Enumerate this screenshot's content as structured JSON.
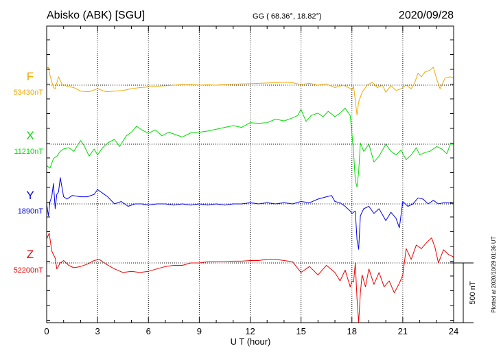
{
  "header": {
    "station": "Abisko (ABK)  [SGU]",
    "coords": "GG ( 68.36°,  18.82°)",
    "date": "2020/09/28"
  },
  "footer": {
    "plotted": "Plotted at 2020/10/29 01:36 UT"
  },
  "colors": {
    "F": "#f2a900",
    "X": "#00dd00",
    "Y": "#0000ee",
    "Z": "#ee0000"
  },
  "chart_data": {
    "type": "line",
    "xlabel": "U T (hour)",
    "xlim": [
      0,
      24
    ],
    "xticks": [
      "0",
      "3",
      "6",
      "9",
      "12",
      "15",
      "18",
      "21",
      "24"
    ],
    "grid": true,
    "scale_bar_label": "500 nT",
    "scale_bar_nT": 500,
    "series": [
      {
        "name": "F",
        "baseline_label": "53430nT",
        "baseline_nT": 53430,
        "x": [
          0,
          0.1,
          0.2,
          0.3,
          0.4,
          0.5,
          0.7,
          0.9,
          1.2,
          1.6,
          2.0,
          2.5,
          3.0,
          3.5,
          4.0,
          4.5,
          5.0,
          5.5,
          6.0,
          6.5,
          7.0,
          7.5,
          8.0,
          8.5,
          9.0,
          9.5,
          10.0,
          10.5,
          11.0,
          11.5,
          12.0,
          12.5,
          13.0,
          13.5,
          14.0,
          14.5,
          15.0,
          15.5,
          16.0,
          16.5,
          17.0,
          17.5,
          17.8,
          18.0,
          18.1,
          18.2,
          18.3,
          18.4,
          18.6,
          18.9,
          19.2,
          19.5,
          19.8,
          20.0,
          20.3,
          20.6,
          20.9,
          21.2,
          21.5,
          21.7,
          21.9,
          22.1,
          22.3,
          22.6,
          22.8,
          23.0,
          23.2,
          23.5,
          23.8,
          24.0
        ],
        "values": [
          140,
          150,
          80,
          30,
          -20,
          -30,
          70,
          10,
          -10,
          -20,
          -50,
          -55,
          -30,
          -55,
          -50,
          -45,
          -30,
          -20,
          -15,
          -10,
          -5,
          0,
          5,
          5,
          0,
          3,
          0,
          5,
          8,
          10,
          12,
          15,
          18,
          20,
          25,
          20,
          5,
          15,
          0,
          10,
          -20,
          0,
          -20,
          -40,
          -10,
          -130,
          -250,
          -140,
          -60,
          0,
          25,
          -20,
          0,
          -60,
          -5,
          -45,
          -30,
          0,
          -30,
          20,
          100,
          70,
          110,
          125,
          150,
          50,
          -30,
          60,
          70,
          60
        ]
      },
      {
        "name": "X",
        "baseline_label": "11210nT",
        "baseline_nT": 11210,
        "x": [
          0,
          0.2,
          0.4,
          0.6,
          0.8,
          1.0,
          1.3,
          1.6,
          2.0,
          2.2,
          2.5,
          2.8,
          3.0,
          3.3,
          3.6,
          4.0,
          4.3,
          4.7,
          5.0,
          5.3,
          5.6,
          6.0,
          6.4,
          6.8,
          7.2,
          7.6,
          8.0,
          8.5,
          9.0,
          9.5,
          10.0,
          10.5,
          11.0,
          11.5,
          12.0,
          12.5,
          13.0,
          13.5,
          14.0,
          14.5,
          14.8,
          15.0,
          15.3,
          15.6,
          16.0,
          16.3,
          16.6,
          17.0,
          17.3,
          17.6,
          17.9,
          18.0,
          18.1,
          18.2,
          18.3,
          18.4,
          18.5,
          18.7,
          19.0,
          19.3,
          19.6,
          20.0,
          20.3,
          20.6,
          20.9,
          21.2,
          21.5,
          21.8,
          22.0,
          22.3,
          22.6,
          23.0,
          23.3,
          23.6,
          23.8,
          24.0
        ],
        "values": [
          -180,
          -200,
          -120,
          -100,
          -60,
          -40,
          -30,
          -60,
          30,
          -10,
          -100,
          -40,
          -90,
          -30,
          10,
          40,
          -20,
          70,
          100,
          150,
          120,
          90,
          120,
          70,
          100,
          80,
          60,
          95,
          100,
          110,
          125,
          140,
          155,
          140,
          180,
          175,
          180,
          210,
          195,
          220,
          240,
          290,
          190,
          240,
          260,
          230,
          275,
          230,
          260,
          300,
          240,
          90,
          -70,
          -300,
          -360,
          -230,
          10,
          -60,
          0,
          -150,
          -100,
          0,
          -60,
          -90,
          -50,
          -130,
          -90,
          -30,
          -90,
          -70,
          -60,
          -20,
          -40,
          -80,
          0,
          0
        ]
      },
      {
        "name": "Y",
        "baseline_label": "1890nT",
        "baseline_nT": 1890,
        "x": [
          0,
          0.1,
          0.2,
          0.3,
          0.4,
          0.5,
          0.6,
          0.7,
          0.8,
          1.0,
          1.2,
          1.5,
          2.0,
          2.4,
          2.8,
          3.0,
          3.3,
          3.6,
          4.0,
          4.4,
          4.8,
          5.2,
          5.6,
          6.0,
          6.5,
          7.0,
          7.5,
          8.0,
          8.5,
          9.0,
          9.5,
          10.0,
          10.5,
          11.0,
          11.5,
          12.0,
          12.5,
          13.0,
          13.5,
          14.0,
          14.5,
          15.0,
          15.5,
          16.0,
          16.5,
          16.8,
          17.0,
          17.3,
          17.6,
          17.9,
          18.0,
          18.2,
          18.3,
          18.4,
          18.5,
          18.7,
          19.0,
          19.3,
          19.6,
          20.0,
          20.3,
          20.6,
          20.8,
          21.0,
          21.3,
          21.6,
          21.9,
          22.2,
          22.5,
          22.8,
          23.1,
          23.4,
          23.7,
          24.0
        ],
        "values": [
          0,
          -100,
          20,
          60,
          170,
          -40,
          80,
          100,
          220,
          60,
          40,
          70,
          60,
          60,
          80,
          120,
          90,
          60,
          0,
          20,
          -20,
          0,
          0,
          -10,
          0,
          0,
          -10,
          0,
          -10,
          0,
          -10,
          0,
          -10,
          0,
          0,
          10,
          0,
          10,
          0,
          10,
          0,
          20,
          10,
          40,
          60,
          70,
          20,
          10,
          -20,
          -60,
          -80,
          -60,
          -300,
          -380,
          -100,
          -40,
          -20,
          -80,
          -40,
          -140,
          -70,
          -120,
          -200,
          20,
          -20,
          0,
          50,
          40,
          0,
          30,
          0,
          10,
          10,
          0
        ]
      },
      {
        "name": "Z",
        "baseline_label": "52200nT",
        "baseline_nT": 52200,
        "x": [
          0,
          0.15,
          0.3,
          0.5,
          0.6,
          0.8,
          1.0,
          1.3,
          1.6,
          2.0,
          2.4,
          2.8,
          3.1,
          3.5,
          4.0,
          4.5,
          5.0,
          5.5,
          6.0,
          6.5,
          7.0,
          7.5,
          8.0,
          8.5,
          9.0,
          9.5,
          10.0,
          10.5,
          11.0,
          11.5,
          12.0,
          12.5,
          13.0,
          13.5,
          14.0,
          14.5,
          15.0,
          15.5,
          16.0,
          16.5,
          17.0,
          17.3,
          17.6,
          17.9,
          18.0,
          18.1,
          18.2,
          18.3,
          18.4,
          18.5,
          18.6,
          18.8,
          19.0,
          19.3,
          19.6,
          19.9,
          20.2,
          20.5,
          20.8,
          21.0,
          21.2,
          21.5,
          21.8,
          22.1,
          22.4,
          22.7,
          22.9,
          23.1,
          23.4,
          23.7,
          24.0
        ],
        "values": [
          200,
          250,
          100,
          40,
          -50,
          0,
          20,
          -20,
          -40,
          -30,
          -10,
          20,
          30,
          -10,
          -50,
          -80,
          -70,
          -80,
          -70,
          -50,
          -30,
          -20,
          -20,
          0,
          0,
          10,
          10,
          10,
          15,
          15,
          20,
          20,
          30,
          30,
          20,
          10,
          -80,
          -30,
          -100,
          -20,
          -80,
          -150,
          -60,
          -200,
          -150,
          -160,
          0,
          -300,
          -500,
          -250,
          -100,
          -200,
          -50,
          -180,
          -80,
          -200,
          -150,
          -250,
          -170,
          -100,
          120,
          30,
          150,
          120,
          170,
          210,
          130,
          0,
          110,
          70,
          50
        ]
      }
    ]
  }
}
